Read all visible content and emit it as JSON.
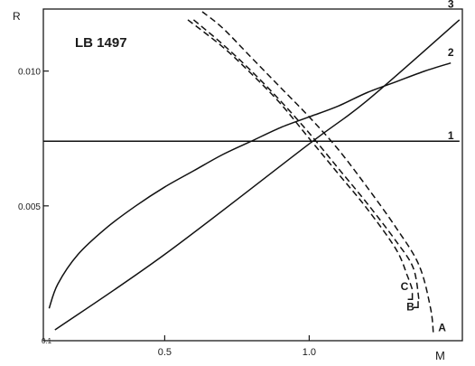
{
  "chart_data": {
    "type": "line",
    "title": "LB 1497",
    "xlabel": "M",
    "ylabel": "R",
    "xlim": [
      0.08,
      1.53
    ],
    "ylim": [
      0.0,
      0.0123
    ],
    "x_ticks": [
      {
        "value": 0.5,
        "label": "0.5"
      },
      {
        "value": 1.0,
        "label": "1.0"
      }
    ],
    "y_ticks": [
      {
        "value": 0.005,
        "label": "0.005"
      },
      {
        "value": 0.01,
        "label": "0.010"
      }
    ],
    "corner_label": "0.1",
    "series": [
      {
        "name": "1",
        "style": "solid",
        "x": [
          0.08,
          1.52
        ],
        "y": [
          0.0074,
          0.0074
        ]
      },
      {
        "name": "2",
        "style": "solid",
        "x": [
          0.1,
          0.13,
          0.2,
          0.3,
          0.4,
          0.5,
          0.6,
          0.7,
          0.8,
          0.9,
          1.0,
          1.1,
          1.2,
          1.3,
          1.4,
          1.49
        ],
        "y": [
          0.0012,
          0.0021,
          0.0032,
          0.0042,
          0.005,
          0.0057,
          0.0063,
          0.0069,
          0.0074,
          0.0079,
          0.0083,
          0.0087,
          0.0092,
          0.0096,
          0.01,
          0.0103
        ]
      },
      {
        "name": "3",
        "style": "solid",
        "x": [
          0.12,
          0.5,
          1.0,
          1.2,
          1.52
        ],
        "y": [
          0.0004,
          0.0032,
          0.0073,
          0.0089,
          0.0119
        ]
      },
      {
        "name": "C",
        "style": "dashed",
        "x": [
          0.58,
          0.7,
          0.8,
          0.9,
          1.0,
          1.1,
          1.2,
          1.3,
          1.34,
          1.36
        ],
        "y": [
          0.0119,
          0.0109,
          0.0099,
          0.0088,
          0.0075,
          0.0062,
          0.0049,
          0.0034,
          0.0024,
          0.0018
        ]
      },
      {
        "name": "B",
        "style": "dashed",
        "x": [
          0.6,
          0.7,
          0.8,
          0.9,
          1.0,
          1.1,
          1.2,
          1.3,
          1.36,
          1.38
        ],
        "y": [
          0.0119,
          0.011,
          0.01,
          0.0089,
          0.0077,
          0.0064,
          0.0051,
          0.0037,
          0.0027,
          0.0015
        ]
      },
      {
        "name": "A",
        "style": "dashed",
        "x": [
          0.63,
          0.7,
          0.8,
          0.9,
          1.0,
          1.1,
          1.2,
          1.3,
          1.38,
          1.42,
          1.43
        ],
        "y": [
          0.0122,
          0.0116,
          0.0105,
          0.0094,
          0.0083,
          0.0071,
          0.0057,
          0.0042,
          0.0028,
          0.0012,
          0.0002
        ]
      }
    ],
    "curve_labels": [
      {
        "text": "1",
        "x": 1.49,
        "y": 0.00748
      },
      {
        "text": "2",
        "x": 1.49,
        "y": 0.01055
      },
      {
        "text": "3",
        "x": 1.49,
        "y": 0.01235
      },
      {
        "text": "C",
        "x": 1.33,
        "y": 0.00188
      },
      {
        "text": "B",
        "x": 1.35,
        "y": 0.00113
      },
      {
        "text": "A",
        "x": 1.46,
        "y": 0.00035
      }
    ],
    "bracket_series": [
      "C",
      "B"
    ],
    "grid": false,
    "legend": "none"
  }
}
